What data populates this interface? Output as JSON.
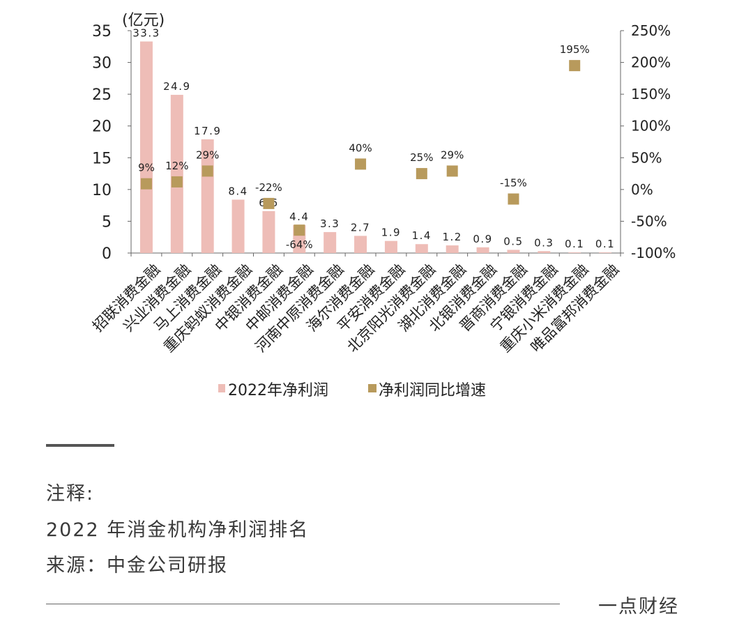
{
  "chart_data": {
    "type": "bar",
    "unit_label": "(亿元)",
    "categories": [
      "招联消费金融",
      "兴业消费金融",
      "马上消费金融",
      "重庆蚂蚁消费金融",
      "中银消费金融",
      "中邮消费金融",
      "河南中原消费金融",
      "海尔消费金融",
      "平安消费金融",
      "北京阳光消费金融",
      "湖北消费金融",
      "北银消费金融",
      "晋商消费金融",
      "宁银消费金融",
      "重庆小米消费金融",
      "唯品富邦消费金融"
    ],
    "series": [
      {
        "name": "2022年净利润",
        "type": "bar",
        "axis": "left",
        "color": "#eebdb7",
        "values": [
          33.3,
          24.9,
          17.9,
          8.4,
          6.6,
          4.4,
          3.3,
          2.7,
          1.9,
          1.4,
          1.2,
          0.9,
          0.5,
          0.3,
          0.1,
          0.1
        ]
      },
      {
        "name": "净利润同比增速",
        "type": "scatter",
        "axis": "right",
        "color": "#b89a5c",
        "values": [
          9,
          12,
          29,
          null,
          -22,
          -64,
          null,
          40,
          null,
          25,
          29,
          null,
          -15,
          null,
          195,
          null
        ]
      }
    ],
    "left_axis": {
      "ylim": [
        0,
        35
      ],
      "ticks": [
        "0",
        "5",
        "10",
        "15",
        "20",
        "25",
        "30",
        "35"
      ]
    },
    "right_axis": {
      "ylim": [
        -100,
        250
      ],
      "ticks": [
        "-100%",
        "-50%",
        "0%",
        "50%",
        "100%",
        "150%",
        "200%",
        "250%"
      ]
    },
    "legend": "bottom"
  },
  "notes": {
    "label": "注释:",
    "line1": "2022 年消金机构净利润排名",
    "line2": "来源：中金公司研报"
  },
  "brand": "一点财经"
}
